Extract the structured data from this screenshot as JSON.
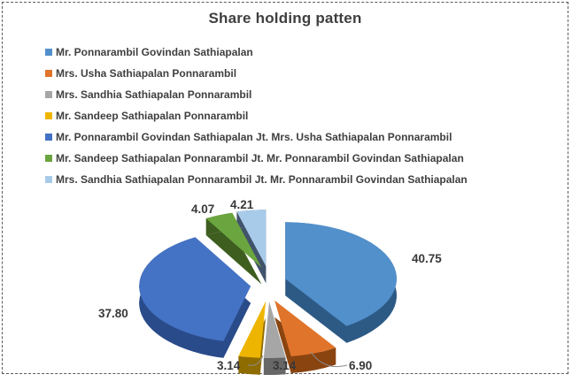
{
  "chart_data": {
    "type": "pie",
    "title": "Share holding patten",
    "effect": "3d-exploded-pie",
    "legend_position": "top-left",
    "unit": "percent",
    "total": 100.01,
    "slices": [
      {
        "label": "Mr. Ponnarambil Govindan Sathiapalan",
        "value": 40.75,
        "value_label": "40.75",
        "color": "#5290CC",
        "side_color": "#2D5A85"
      },
      {
        "label": "Mrs. Usha Sathiapalan Ponnarambil",
        "value": 6.9,
        "value_label": "6.90",
        "color": "#E0742A",
        "side_color": "#8A4410"
      },
      {
        "label": "Mrs. Sandhia Sathiapalan Ponnarambil",
        "value": 3.14,
        "value_label": "3.14",
        "color": "#A6A6A6",
        "side_color": "#676767"
      },
      {
        "label": "Mr. Sandeep Sathiapalan Ponnarambil",
        "value": 3.14,
        "value_label": "3.14",
        "color": "#EEB500",
        "side_color": "#8F6C00"
      },
      {
        "label": "Mr. Ponnarambil Govindan Sathiapalan Jt. Mrs. Usha Sathiapalan Ponnarambil",
        "value": 37.8,
        "value_label": "37.80",
        "color": "#4472C4",
        "side_color": "#2A4B8A"
      },
      {
        "label": "Mr. Sandeep Sathiapalan Ponnarambil Jt. Mr. Ponnarambil Govindan Sathiapalan",
        "value": 4.07,
        "value_label": "4.07",
        "color": "#6BA53F",
        "side_color": "#3E5E20"
      },
      {
        "label": "Mrs. Sandhia Sathiapalan Ponnarambil Jt. Mr. Ponnarambil Govindan Sathiapalan",
        "value": 4.21,
        "value_label": "4.21",
        "color": "#A9CBEA",
        "side_color": "#41536B"
      }
    ]
  }
}
